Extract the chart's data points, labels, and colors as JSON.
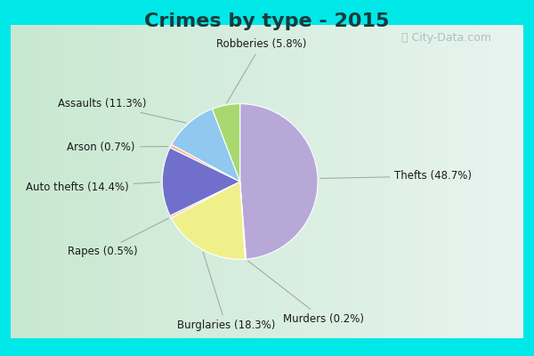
{
  "title": "Crimes by type - 2015",
  "title_fontsize": 16,
  "title_fontweight": "bold",
  "title_color": "#1a3a3a",
  "labels": [
    "Thefts",
    "Murders",
    "Burglaries",
    "Rapes",
    "Auto thefts",
    "Arson",
    "Assaults",
    "Robberies"
  ],
  "values": [
    48.7,
    0.2,
    18.3,
    0.5,
    14.4,
    0.7,
    11.3,
    5.8
  ],
  "colors": [
    "#b8a8d8",
    "#d4d472",
    "#f0f08a",
    "#ffb8b8",
    "#7070cc",
    "#ffb890",
    "#90c8f0",
    "#aad870"
  ],
  "border_color": "#00e8e8",
  "border_thickness": 12,
  "inner_bg": "#d0ead8",
  "label_fontsize": 8.5,
  "label_color": "#1a1a1a",
  "line_color": "#a0a0a0",
  "watermark": "ⓘ City-Data.com",
  "watermark_color": "#a0b8b8",
  "watermark_fontsize": 9
}
